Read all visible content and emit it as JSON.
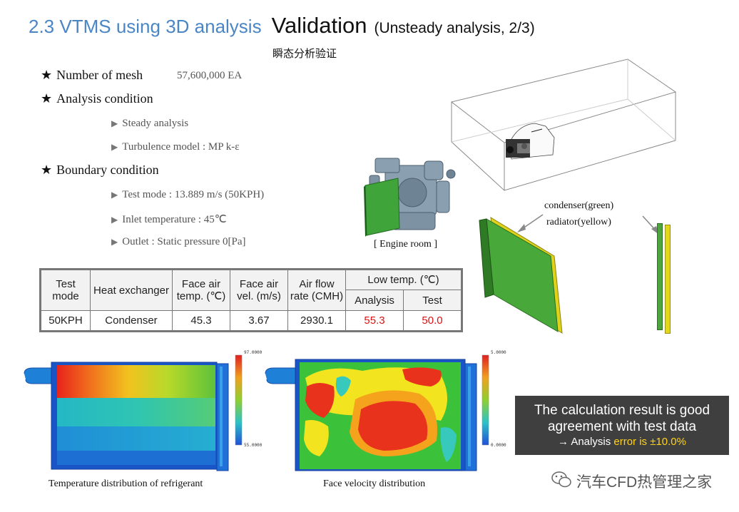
{
  "header": {
    "section": "2.3 VTMS using 3D analysis",
    "title": "Validation",
    "subtitle": "(Unsteady analysis, 2/3)",
    "subtitle_cn": "瞬态分析验证"
  },
  "specs": {
    "mesh_label": "Number of mesh",
    "mesh_value": "57,600,000 EA",
    "analysis_label": "Analysis condition",
    "analysis_items": [
      "Steady analysis",
      "Turbulence  model : MP k-ε"
    ],
    "boundary_label": "Boundary condition",
    "boundary_items": [
      "Test mode : 13.889 m/s  (50KPH)",
      "Inlet temperature : 45℃",
      "Outlet : Static pressure  0[Pa]"
    ]
  },
  "figures": {
    "engine_label": "[ Engine  room ]",
    "condenser_label": "condenser(green)",
    "radiator_label": "radiator(yellow)"
  },
  "table": {
    "headers": {
      "test_mode": "Test mode",
      "heat_exchanger": "Heat exchanger",
      "face_air_temp": "Face air temp. (℃)",
      "face_air_vel": "Face air vel. (m/s)",
      "air_flow": "Air flow rate (CMH)",
      "low_temp": "Low temp. (℃)",
      "analysis": "Analysis",
      "test": "Test"
    },
    "row": {
      "test_mode": "50KPH",
      "heat_exchanger": "Condenser",
      "face_air_temp": "45.3",
      "face_air_vel": "3.67",
      "air_flow": "2930.1",
      "analysis": "55.3",
      "test": "50.0"
    }
  },
  "contours": {
    "temp_caption": "Temperature  distribution  of refrigerant",
    "temp_scale_max": "97.0000",
    "temp_scale_min": "55.0000",
    "vel_caption": "Face velocity  distribution",
    "vel_scale_max": "5.0000",
    "vel_scale_min": "0.0000"
  },
  "result": {
    "line1": "The calculation result is good",
    "line2": "agreement with test data",
    "line3_prefix": "→ Analysis ",
    "line3_highlight": "error is  ±10.0%"
  },
  "watermark": "汽车CFD热管理之家",
  "colors": {
    "title_blue": "#4a86c5",
    "highlight_red": "#d11111",
    "highlight_yellow": "#ffd21a",
    "box_bg": "#3f3f3f"
  }
}
